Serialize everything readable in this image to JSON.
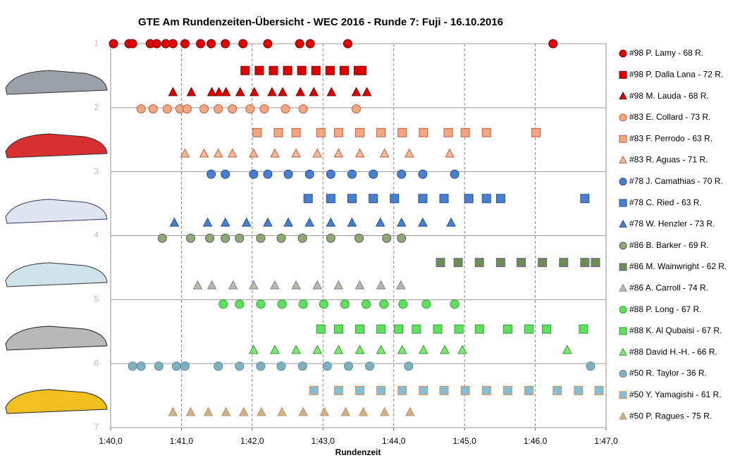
{
  "chart_data": {
    "type": "scatter",
    "title": "GTE Am  Rundenzeiten-Übersicht  - WEC 2016  - Runde 7: Fuji  - 16.10.2016",
    "x_label": "Rundenzeit",
    "xlim": [
      100,
      107
    ],
    "xticks": [
      {
        "value": 100,
        "label": "1:40,0"
      },
      {
        "value": 101,
        "label": "1:41,0"
      },
      {
        "value": 102,
        "label": "1:42,0"
      },
      {
        "value": 103,
        "label": "1:43,0"
      },
      {
        "value": 104,
        "label": "1:44,0"
      },
      {
        "value": 105,
        "label": "1:45,0"
      },
      {
        "value": 106,
        "label": "1:46,0"
      },
      {
        "value": 107,
        "label": "1:47,0"
      }
    ],
    "ylim": [
      1,
      7
    ],
    "yticks": [
      1,
      2,
      3,
      4,
      5,
      6,
      7
    ],
    "y_inverted": true,
    "grid": true,
    "legend": "right",
    "series": [
      {
        "name": "#98 P. Lamy - 68 R.",
        "marker": "circle",
        "color": "#e00000",
        "edge": "#7a0000",
        "y": 1.0,
        "x": [
          100.04,
          100.26,
          100.31,
          100.56,
          100.65,
          100.78,
          100.88,
          101.05,
          101.27,
          101.42,
          101.62,
          101.87,
          102.22,
          102.67,
          102.82,
          103.35,
          106.25
        ]
      },
      {
        "name": "#98 P. Dalla Lana - 72 R.",
        "marker": "square",
        "color": "#e00000",
        "edge": "#7a0000",
        "y": 1.42,
        "x": [
          101.9,
          102.1,
          102.3,
          102.5,
          102.7,
          102.9,
          103.1,
          103.3,
          103.5,
          103.55
        ]
      },
      {
        "name": "#98 M. Lauda - 68 R.",
        "marker": "triangle",
        "color": "#e00000",
        "edge": "#7a0000",
        "y": 1.76,
        "x": [
          100.88,
          101.14,
          101.43,
          101.53,
          101.63,
          101.83,
          102.03,
          102.28,
          102.43,
          102.68,
          102.87,
          103.12,
          103.47,
          103.62
        ]
      },
      {
        "name": "#83 E. Collard - 73 R.",
        "marker": "circle",
        "color": "#f4a582",
        "edge": "#c0603a",
        "y": 2.02,
        "x": [
          100.43,
          100.6,
          100.8,
          100.98,
          101.08,
          101.32,
          101.52,
          101.72,
          101.97,
          102.17,
          102.47,
          102.72,
          103.47
        ]
      },
      {
        "name": "#83 F. Perrodo - 63 R.",
        "marker": "square",
        "color": "#f4a582",
        "edge": "#c0603a",
        "y": 2.39,
        "x": [
          102.07,
          102.37,
          102.62,
          102.97,
          103.22,
          103.52,
          103.82,
          104.12,
          104.42,
          104.77,
          105.01,
          105.31,
          106.01
        ]
      },
      {
        "name": "#83 R. Aguas - 71 R.",
        "marker": "triangle",
        "color": "#f4b89a",
        "edge": "#c0603a",
        "y": 2.72,
        "x": [
          101.05,
          101.32,
          101.52,
          101.72,
          102.02,
          102.32,
          102.62,
          102.92,
          103.22,
          103.52,
          103.87,
          104.22,
          104.79
        ]
      },
      {
        "name": "#78 J. Camathias - 70 R.",
        "marker": "circle",
        "color": "#4a7fd0",
        "edge": "#1f4f9f",
        "y": 3.04,
        "x": [
          101.42,
          101.62,
          102.02,
          102.22,
          102.51,
          102.81,
          103.11,
          103.41,
          103.71,
          104.11,
          104.41,
          104.86
        ]
      },
      {
        "name": "#78 C. Ried - 63 R.",
        "marker": "square",
        "color": "#4a7fd0",
        "edge": "#1f4f9f",
        "y": 3.42,
        "x": [
          102.79,
          103.11,
          103.41,
          103.71,
          104.01,
          104.41,
          104.71,
          105.06,
          105.31,
          105.51,
          106.7
        ]
      },
      {
        "name": "#78 W. Henzler - 73 R.",
        "marker": "triangle",
        "color": "#4a7fd0",
        "edge": "#1f4f9f",
        "y": 3.8,
        "x": [
          100.9,
          101.37,
          101.62,
          101.92,
          102.22,
          102.51,
          102.81,
          103.11,
          103.41,
          103.81,
          104.11,
          104.41,
          104.81
        ]
      },
      {
        "name": "#86 B. Barker - 69 R.",
        "marker": "circle",
        "color": "#8fa878",
        "edge": "#556050",
        "y": 4.04,
        "x": [
          100.73,
          101.13,
          101.4,
          101.62,
          101.82,
          102.12,
          102.41,
          102.71,
          103.11,
          103.51,
          103.9,
          104.11
        ]
      },
      {
        "name": "#86 M. Wainwright - 62 R.",
        "marker": "square",
        "color": "#6a9050",
        "edge": "#7a5a9a",
        "y": 4.42,
        "x": [
          104.66,
          104.91,
          105.21,
          105.51,
          105.8,
          106.1,
          106.4,
          106.7,
          106.85
        ]
      },
      {
        "name": "#86 A. Carroll - 74 R.",
        "marker": "triangle",
        "color": "#b4bca4",
        "edge": "#8a7aa8",
        "y": 4.78,
        "x": [
          101.23,
          101.43,
          101.73,
          102.02,
          102.32,
          102.62,
          102.92,
          103.22,
          103.52,
          103.82,
          104.1
        ]
      },
      {
        "name": "#88 P. Long - 67 R.",
        "marker": "circle",
        "color": "#5fe05f",
        "edge": "#2f9f2f",
        "y": 5.07,
        "x": [
          101.59,
          101.82,
          102.12,
          102.42,
          102.72,
          103.01,
          103.31,
          103.61,
          103.86,
          104.13,
          104.46,
          104.86
        ]
      },
      {
        "name": "#88 K. Al Qubaisi - 67 R.",
        "marker": "square",
        "color": "#5fe05f",
        "edge": "#2f9f2f",
        "y": 5.46,
        "x": [
          102.97,
          103.22,
          103.52,
          103.82,
          104.07,
          104.32,
          104.62,
          104.92,
          105.21,
          105.61,
          105.91,
          106.16,
          106.68
        ]
      },
      {
        "name": "#88 David H.-H. - 66 R.",
        "marker": "triangle",
        "color": "#7fe86f",
        "edge": "#2f9f2f",
        "y": 5.79,
        "x": [
          102.02,
          102.32,
          102.62,
          102.92,
          103.22,
          103.52,
          103.82,
          104.12,
          104.42,
          104.72,
          104.97,
          106.45
        ]
      },
      {
        "name": "#50 R. Taylor - 36 R.",
        "marker": "circle",
        "color": "#7fb0c0",
        "edge": "#5a8a9a",
        "y": 6.04,
        "x": [
          100.31,
          100.43,
          100.68,
          100.93,
          101.05,
          101.52,
          101.82,
          102.12,
          102.41,
          102.71,
          103.06,
          103.36,
          103.66,
          104.21,
          106.78
        ]
      },
      {
        "name": "#50 Y. Yamagishi - 61 R.",
        "marker": "square",
        "color": "#7fc0d8",
        "edge": "#e08a40",
        "y": 6.42,
        "x": [
          102.87,
          103.22,
          103.52,
          103.82,
          104.12,
          104.42,
          104.71,
          105.01,
          105.31,
          105.61,
          105.91,
          106.31,
          106.61,
          106.9
        ]
      },
      {
        "name": "#50 P. Ragues - 75 R.",
        "marker": "triangle",
        "color": "#c4b494",
        "edge": "#d0905a",
        "y": 6.76,
        "x": [
          100.88,
          101.13,
          101.38,
          101.63,
          101.88,
          102.13,
          102.42,
          102.72,
          103.02,
          103.32,
          103.57,
          103.87,
          104.23
        ]
      }
    ]
  }
}
